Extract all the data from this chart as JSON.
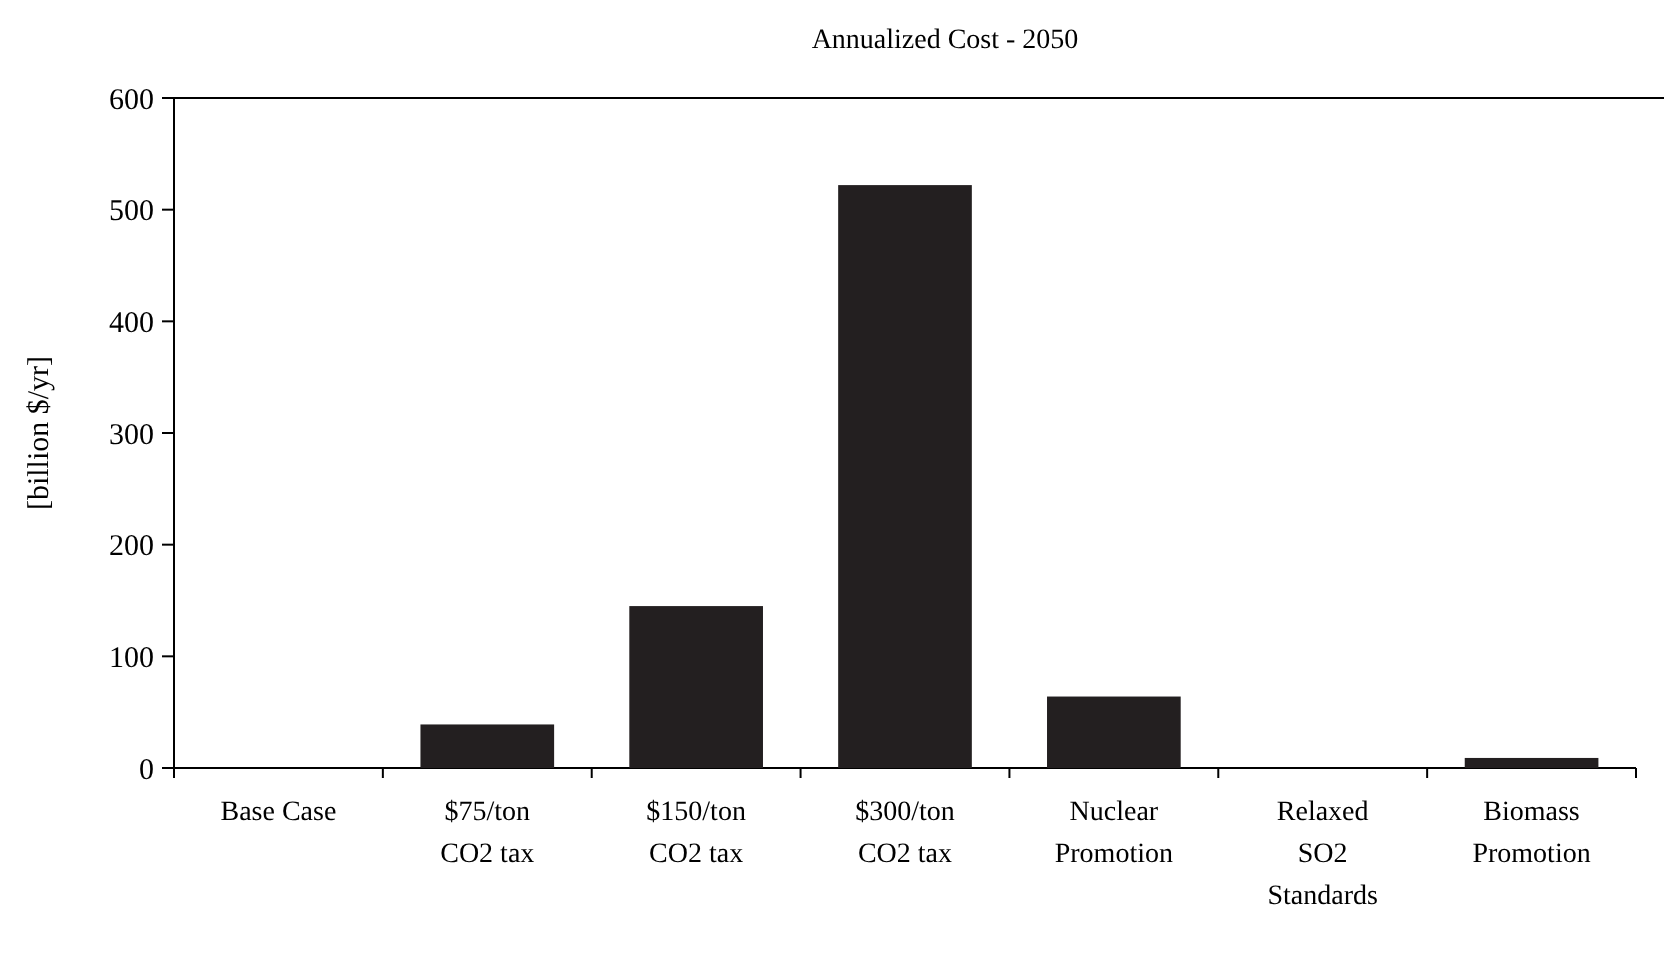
{
  "chart_data": {
    "type": "bar",
    "title": "Annualized Cost - 2050",
    "ylabel": "[billion $/yr]",
    "categories": [
      "Base Case",
      "$75/ton\nCO2 tax",
      "$150/ton\nCO2 tax",
      "$300/ton\nCO2 tax",
      "Nuclear\nPromotion",
      "Relaxed\nSO2\nStandards",
      "Biomass\nPromotion"
    ],
    "values": [
      0,
      39,
      145,
      522,
      64,
      0,
      9
    ],
    "color": "#231f20",
    "ylim": [
      0,
      600
    ],
    "yticks": [
      0,
      100,
      200,
      300,
      400,
      500,
      600
    ],
    "grid": false
  }
}
